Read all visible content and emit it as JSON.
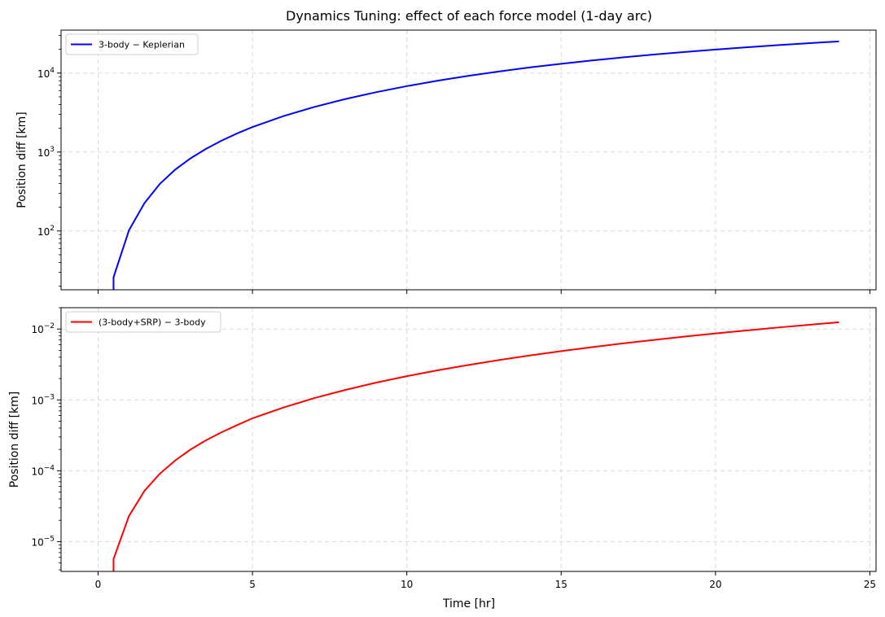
{
  "figure": {
    "title": "Dynamics Tuning: effect of each force model (1-day arc)",
    "xlabel": "Time [hr]"
  },
  "chart_data": [
    {
      "type": "line",
      "title": "Dynamics Tuning: effect of each force model (1-day arc)",
      "xlabel": "",
      "ylabel": "Position diff [km]",
      "yscale": "log",
      "xlim": [
        -1.2,
        25.2
      ],
      "ylim": [
        18,
        35000
      ],
      "xticks": [
        0,
        5,
        10,
        15,
        20,
        25
      ],
      "xtick_labels": [
        "",
        "",
        "",
        "",
        "",
        ""
      ],
      "yticks": [
        100,
        1000,
        10000
      ],
      "ytick_labels": [
        "10^2",
        "10^3",
        "10^4"
      ],
      "grid": true,
      "legend_position": "top-left",
      "series": [
        {
          "name": "3-body − Keplerian",
          "color": "#0000ff",
          "x": [
            0.5,
            0.5,
            1,
            1.5,
            2,
            2.5,
            3,
            3.5,
            4,
            4.5,
            5,
            6,
            7,
            8,
            9,
            10,
            11,
            12,
            13,
            14,
            15,
            16,
            17,
            18,
            19,
            20,
            21,
            22,
            23,
            24
          ],
          "y": [
            18,
            26,
            102,
            225,
            395,
            600,
            835,
            1100,
            1395,
            1720,
            2070,
            2850,
            3720,
            4680,
            5720,
            6830,
            8000,
            9230,
            10500,
            11800,
            13100,
            14450,
            15800,
            17150,
            18500,
            19850,
            21200,
            22550,
            23850,
            25200
          ]
        }
      ]
    },
    {
      "type": "line",
      "xlabel": "Time [hr]",
      "ylabel": "Position diff [km]",
      "yscale": "log",
      "xlim": [
        -1.2,
        25.2
      ],
      "ylim": [
        3.8e-06,
        0.02
      ],
      "xticks": [
        0,
        5,
        10,
        15,
        20,
        25
      ],
      "xtick_labels": [
        "0",
        "5",
        "10",
        "15",
        "20",
        "25"
      ],
      "yticks": [
        1e-05,
        0.0001,
        0.001,
        0.01
      ],
      "ytick_labels": [
        "10^-5",
        "10^-4",
        "10^-3",
        "10^-2"
      ],
      "grid": true,
      "legend_position": "top-left",
      "series": [
        {
          "name": "(3-body+SRP) − 3-body",
          "color": "#ff0000",
          "x": [
            0.5,
            0.5,
            1,
            1.5,
            2,
            2.5,
            3,
            3.5,
            4,
            4.5,
            5,
            6,
            7,
            8,
            9,
            10,
            11,
            12,
            13,
            14,
            15,
            16,
            17,
            18,
            19,
            20,
            21,
            22,
            23,
            24
          ],
          "y": [
            3.8e-06,
            5.7e-06,
            2.3e-05,
            5.2e-05,
            9.1e-05,
            0.00014,
            0.0002,
            0.00027,
            0.00035,
            0.00044,
            0.00055,
            0.00078,
            0.00106,
            0.00138,
            0.00175,
            0.00216,
            0.00262,
            0.00311,
            0.00366,
            0.00424,
            0.00487,
            0.00554,
            0.00626,
            0.00702,
            0.00782,
            0.00866,
            0.00955,
            0.01048,
            0.01145,
            0.01245
          ]
        }
      ]
    }
  ]
}
